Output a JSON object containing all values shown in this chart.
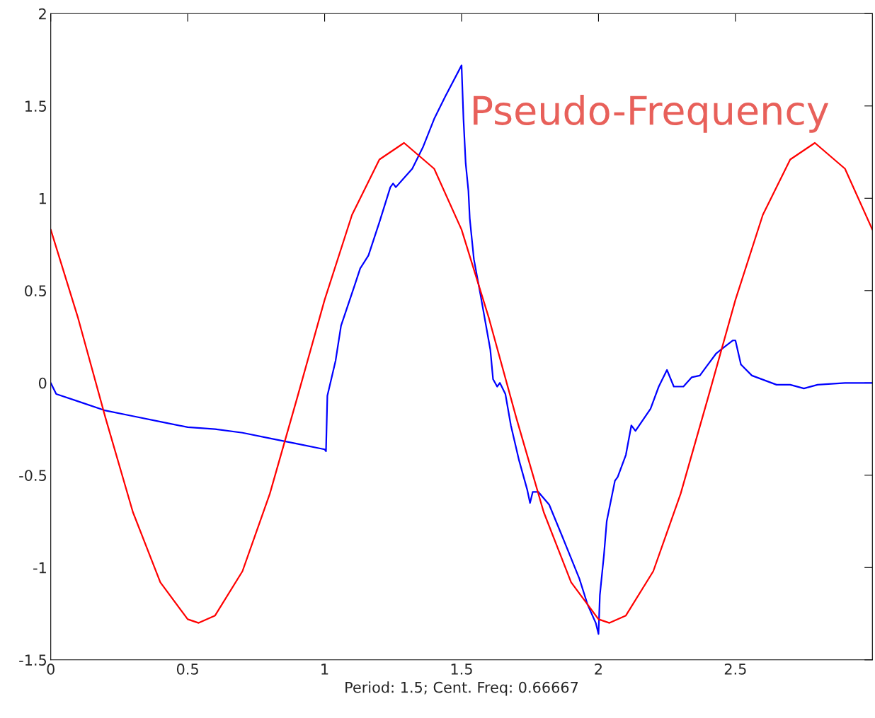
{
  "chart_data": {
    "type": "line",
    "xlabel": "Period: 1.5; Cent. Freq: 0.66667",
    "annotations": [
      "Pseudo-Frequency"
    ],
    "xlim": [
      0,
      3
    ],
    "ylim": [
      -1.5,
      2
    ],
    "xticks": [
      0,
      0.5,
      1,
      1.5,
      2,
      2.5
    ],
    "yticks": [
      -1.5,
      -1,
      -0.5,
      0,
      0.5,
      1,
      1.5,
      2
    ],
    "grid": false,
    "legend": false,
    "marker": "none",
    "line_style": "solid",
    "series": [
      {
        "color": "#0000ff",
        "x": [
          0,
          0.02,
          0.1,
          0.2,
          0.3,
          0.4,
          0.5,
          0.6,
          0.7,
          0.8,
          0.9,
          1.0,
          1.005,
          1.01,
          1.04,
          1.06,
          1.11,
          1.13,
          1.16,
          1.2,
          1.24,
          1.25,
          1.26,
          1.32,
          1.36,
          1.4,
          1.44,
          1.5,
          1.507,
          1.515,
          1.525,
          1.53,
          1.545,
          1.57,
          1.605,
          1.615,
          1.63,
          1.64,
          1.66,
          1.68,
          1.71,
          1.74,
          1.75,
          1.76,
          1.78,
          1.82,
          1.87,
          1.93,
          1.96,
          1.99,
          2.0,
          2.005,
          2.02,
          2.03,
          2.06,
          2.07,
          2.1,
          2.12,
          2.135,
          2.19,
          2.22,
          2.25,
          2.275,
          2.31,
          2.34,
          2.37,
          2.4,
          2.43,
          2.49,
          2.5,
          2.52,
          2.56,
          2.65,
          2.7,
          2.75,
          2.8,
          2.9,
          3.0
        ],
        "values": [
          0,
          -0.06,
          -0.1,
          -0.15,
          -0.18,
          -0.21,
          -0.24,
          -0.25,
          -0.27,
          -0.3,
          -0.33,
          -0.36,
          -0.37,
          -0.07,
          0.12,
          0.31,
          0.53,
          0.62,
          0.69,
          0.87,
          1.06,
          1.08,
          1.06,
          1.16,
          1.28,
          1.43,
          1.55,
          1.72,
          1.43,
          1.19,
          1.04,
          0.89,
          0.67,
          0.47,
          0.18,
          0.02,
          -0.02,
          0,
          -0.06,
          -0.23,
          -0.42,
          -0.58,
          -0.65,
          -0.59,
          -0.59,
          -0.66,
          -0.84,
          -1.06,
          -1.2,
          -1.3,
          -1.36,
          -1.15,
          -0.93,
          -0.75,
          -0.53,
          -0.51,
          -0.39,
          -0.23,
          -0.26,
          -0.14,
          -0.02,
          0.07,
          -0.02,
          -0.02,
          0.03,
          0.04,
          0.1,
          0.16,
          0.23,
          0.23,
          0.1,
          0.04,
          -0.01,
          -0.01,
          -0.03,
          -0.01,
          0,
          0
        ]
      },
      {
        "color": "#ff0000",
        "x": [
          0,
          0.1,
          0.2,
          0.3,
          0.4,
          0.5,
          0.54,
          0.6,
          0.7,
          0.8,
          0.9,
          1.0,
          1.1,
          1.2,
          1.29,
          1.4,
          1.5,
          1.6,
          1.7,
          1.8,
          1.9,
          2.0,
          2.04,
          2.1,
          2.2,
          2.3,
          2.4,
          2.5,
          2.6,
          2.7,
          2.79,
          2.9,
          3.0
        ],
        "values": [
          0.83,
          0.35,
          -0.19,
          -0.7,
          -1.08,
          -1.28,
          -1.3,
          -1.26,
          -1.02,
          -0.6,
          -0.08,
          0.45,
          0.91,
          1.21,
          1.3,
          1.16,
          0.83,
          0.35,
          -0.19,
          -0.7,
          -1.08,
          -1.28,
          -1.3,
          -1.26,
          -1.02,
          -0.6,
          -0.08,
          0.45,
          0.91,
          1.21,
          1.3,
          1.16,
          0.83
        ]
      }
    ]
  }
}
